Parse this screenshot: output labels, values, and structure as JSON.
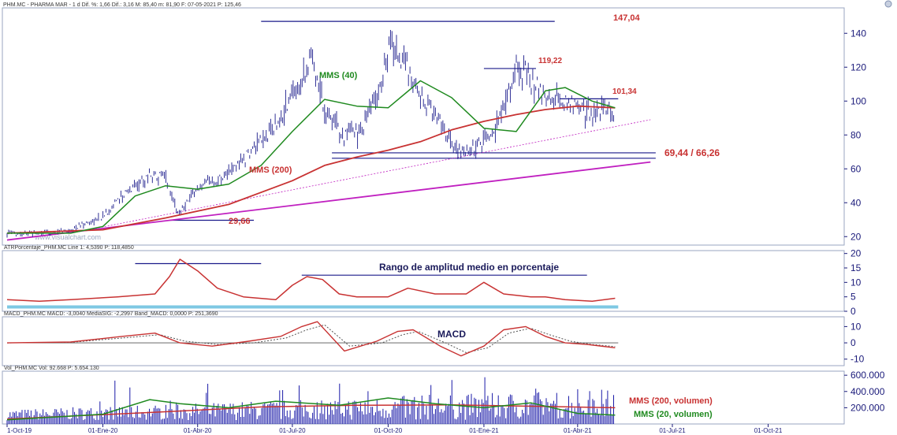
{
  "window": {
    "main_header": "PHM.MC - PHARMA MAR - 1 d  Dif. %: 1,66  Dif.: 3,16  M: 85,40  m: 81,90  F: 07-05-2021  P: 125,46",
    "atr_header": "ATRPorcentaje_PHM.MC  Line 1: 4,5390  P: 118,4850",
    "macd_header": "MACD_PHM.MC  MACD: -3,0040  MediaSIG: -2,2997  Band_MACD: 0,0000  P: 251,3690",
    "vol_header": "Vol_PHM.MC  Vol: 92.668  P: 5.654.130",
    "watermark": "www.visualchart.com"
  },
  "chart_data": [
    {
      "type": "line",
      "panel": "price",
      "ylim": [
        15,
        155
      ],
      "y_ticks": [
        "20",
        "40",
        "60",
        "80",
        "100",
        "120",
        "140"
      ],
      "x_ticks": [
        "1-Oct-19",
        "01-Ene-20",
        "01-Abr-20",
        "01-Jul-20",
        "01-Oct-20",
        "01-Ene-21",
        "01-Abr-21",
        "01-Jul-21",
        "01-Oct-21"
      ],
      "x_tick_dates": [
        "2019-10-01",
        "2020-01-01",
        "2020-04-01",
        "2020-07-01",
        "2020-10-01",
        "2021-01-01",
        "2021-04-01",
        "2021-07-01",
        "2021-10-01"
      ],
      "series": [
        {
          "name": "precio",
          "color": "#1a1a8a",
          "x": [
            "2019-10-01",
            "2019-11-01",
            "2019-12-01",
            "2020-01-01",
            "2020-01-20",
            "2020-02-15",
            "2020-03-01",
            "2020-03-13",
            "2020-04-01",
            "2020-05-01",
            "2020-06-01",
            "2020-06-20",
            "2020-07-08",
            "2020-07-20",
            "2020-08-01",
            "2020-08-20",
            "2020-09-05",
            "2020-09-25",
            "2020-10-01",
            "2020-10-20",
            "2020-11-01",
            "2020-11-20",
            "2020-12-01",
            "2020-12-10",
            "2020-12-20",
            "2021-01-01",
            "2021-01-15",
            "2021-02-01",
            "2021-02-15",
            "2021-03-01",
            "2021-03-15",
            "2021-04-01",
            "2021-04-15",
            "2021-04-30",
            "2021-05-07"
          ],
          "y": [
            22,
            22,
            24,
            32,
            44,
            57,
            55,
            34,
            48,
            58,
            75,
            90,
            112,
            127,
            95,
            80,
            82,
            110,
            135,
            120,
            100,
            90,
            75,
            70,
            71,
            75,
            88,
            120,
            113,
            102,
            100,
            97,
            93,
            96,
            84
          ]
        },
        {
          "name": "MMS (40)",
          "color": "#1f8a1f",
          "x": [
            "2019-10-01",
            "2019-12-01",
            "2020-01-01",
            "2020-02-01",
            "2020-03-01",
            "2020-04-01",
            "2020-05-01",
            "2020-06-01",
            "2020-07-01",
            "2020-08-01",
            "2020-09-01",
            "2020-10-01",
            "2020-11-01",
            "2020-12-01",
            "2021-01-01",
            "2021-02-01",
            "2021-03-01",
            "2021-03-20",
            "2021-04-15",
            "2021-05-07"
          ],
          "y": [
            22,
            22,
            26,
            44,
            50,
            48,
            51,
            62,
            82,
            101,
            97,
            96,
            112,
            102,
            84,
            82,
            106,
            108,
            100,
            96
          ]
        },
        {
          "name": "MMS (200)",
          "color": "#c83232",
          "x": [
            "2019-10-01",
            "2020-01-01",
            "2020-03-01",
            "2020-05-01",
            "2020-07-01",
            "2020-08-01",
            "2020-09-01",
            "2020-10-01",
            "2020-11-01",
            "2020-12-01",
            "2021-01-01",
            "2021-02-01",
            "2021-03-01",
            "2021-04-01",
            "2021-05-07"
          ],
          "y": [
            22,
            24,
            31,
            39,
            53,
            62,
            67,
            71,
            76,
            83,
            88,
            92,
            95,
            97,
            96
          ]
        }
      ],
      "annotations": {
        "high": "147,04",
        "level_119": "119,22",
        "level_101": "101,34",
        "support": "69,44 / 66,26",
        "low": "29,66",
        "mms40_label": "MMS (40)",
        "mms200_label": "MMS (200)"
      },
      "levels": [
        {
          "label": "147,04",
          "value": 147.04,
          "from": "2020-06-01",
          "to": "2021-03-10",
          "color": "#1a1a8a"
        },
        {
          "label": "119,22",
          "value": 119.22,
          "from": "2021-01-01",
          "to": "2021-02-20",
          "color": "#1a1a8a"
        },
        {
          "label": "101,34",
          "value": 101.34,
          "from": "2021-03-15",
          "to": "2021-05-10",
          "color": "#1a1a8a"
        },
        {
          "label": "69,44",
          "value": 69.44,
          "from": "2020-08-08",
          "to": "2021-06-15",
          "color": "#1a1a8a"
        },
        {
          "label": "66,26",
          "value": 66.26,
          "from": "2020-08-08",
          "to": "2021-06-15",
          "color": "#1a1a8a"
        },
        {
          "label": "29,66",
          "value": 29.66,
          "from": "2020-03-05",
          "to": "2020-05-25",
          "color": "#1a1a8a"
        }
      ],
      "trendlines": [
        {
          "name": "soporte",
          "color": "#c020c0",
          "from": [
            "2019-10-01",
            18
          ],
          "to": [
            "2021-06-10",
            64
          ]
        },
        {
          "name": "soporte_punteada",
          "color": "#c020c0",
          "dashed": true,
          "from": [
            "2019-12-01",
            22
          ],
          "to": [
            "2021-06-10",
            89
          ]
        }
      ]
    },
    {
      "type": "line",
      "panel": "atr",
      "ylim": [
        0,
        21
      ],
      "y_ticks": [
        "20",
        "15",
        "10",
        "5",
        "0"
      ],
      "title": "Rango de amplitud medio en porcentaje",
      "series": [
        {
          "name": "ATRPorcentaje",
          "color": "#c83232",
          "x": [
            "2019-10-01",
            "2019-11-01",
            "2019-12-01",
            "2020-01-15",
            "2020-02-20",
            "2020-03-05",
            "2020-03-15",
            "2020-04-01",
            "2020-04-20",
            "2020-05-15",
            "2020-06-15",
            "2020-07-01",
            "2020-07-15",
            "2020-07-30",
            "2020-08-15",
            "2020-09-01",
            "2020-10-01",
            "2020-10-20",
            "2020-11-15",
            "2020-12-15",
            "2021-01-01",
            "2021-01-20",
            "2021-02-15",
            "2021-03-01",
            "2021-03-20",
            "2021-04-15",
            "2021-05-07"
          ],
          "y": [
            4,
            3.5,
            4,
            5,
            6,
            12,
            18,
            14,
            8,
            5,
            4,
            9,
            12,
            11,
            6,
            5,
            5,
            8,
            6,
            6,
            10,
            6,
            5,
            5,
            4,
            3.5,
            4.5
          ]
        }
      ],
      "levels": [
        {
          "value": 16.5,
          "from": "2020-02-01",
          "to": "2020-06-01",
          "color": "#1a1a8a"
        },
        {
          "value": 12.5,
          "from": "2020-07-10",
          "to": "2021-04-10",
          "color": "#1a1a8a"
        },
        {
          "value": 1.5,
          "from": "2019-10-01",
          "to": "2021-05-10",
          "color": "#7ec8e3",
          "thick": true
        }
      ]
    },
    {
      "type": "line",
      "panel": "macd",
      "ylim": [
        -14,
        16
      ],
      "y_ticks": [
        "10",
        "0",
        "-10"
      ],
      "title": "MACD",
      "series": [
        {
          "name": "MACD",
          "color": "#c83232",
          "x": [
            "2019-10-01",
            "2019-12-01",
            "2020-01-20",
            "2020-02-20",
            "2020-03-15",
            "2020-04-15",
            "2020-05-20",
            "2020-06-20",
            "2020-07-10",
            "2020-07-25",
            "2020-08-20",
            "2020-09-20",
            "2020-10-10",
            "2020-10-25",
            "2020-11-20",
            "2020-12-10",
            "2021-01-01",
            "2021-01-20",
            "2021-02-10",
            "2021-03-01",
            "2021-03-20",
            "2021-04-10",
            "2021-05-07"
          ],
          "y": [
            0,
            0.5,
            4,
            6,
            0,
            -2,
            1,
            4,
            10,
            13,
            -5,
            1,
            7,
            8,
            -2,
            -8,
            -2,
            8,
            10,
            4,
            0,
            -1,
            -3
          ]
        },
        {
          "name": "MediaSIG",
          "color": "#555555",
          "dashed": true,
          "x": [
            "2019-10-01",
            "2019-12-01",
            "2020-01-20",
            "2020-02-25",
            "2020-03-20",
            "2020-04-20",
            "2020-05-25",
            "2020-06-25",
            "2020-07-15",
            "2020-08-01",
            "2020-08-25",
            "2020-09-25",
            "2020-10-15",
            "2020-10-30",
            "2020-11-25",
            "2020-12-15",
            "2021-01-05",
            "2021-01-25",
            "2021-02-15",
            "2021-03-05",
            "2021-03-25",
            "2021-04-15",
            "2021-05-07"
          ],
          "y": [
            0,
            0.3,
            3,
            5,
            1,
            -1,
            0,
            3,
            8,
            11,
            -2,
            0,
            5,
            7,
            0,
            -6,
            -3,
            6,
            9,
            5,
            1,
            -1,
            -2.3
          ]
        }
      ]
    },
    {
      "type": "bar",
      "panel": "volumen",
      "ylim": [
        0,
        650000
      ],
      "y_ticks": [
        "600.000",
        "400.000",
        "200.000"
      ],
      "volume_seed": 7,
      "volume_base": [
        120000,
        260000
      ],
      "series": [
        {
          "name": "MMS (200, volumen)",
          "color": "#c83232",
          "x": [
            "2019-10-01",
            "2020-03-01",
            "2020-06-01",
            "2020-09-01",
            "2020-12-01",
            "2021-03-01",
            "2021-05-07"
          ],
          "y": [
            60000,
            150000,
            210000,
            230000,
            235000,
            215000,
            200000
          ]
        },
        {
          "name": "MMS (20, volumen)",
          "color": "#1f8a1f",
          "x": [
            "2019-10-01",
            "2020-01-01",
            "2020-02-15",
            "2020-03-15",
            "2020-05-01",
            "2020-06-15",
            "2020-08-15",
            "2020-10-01",
            "2020-11-15",
            "2021-01-01",
            "2021-02-15",
            "2021-04-01",
            "2021-05-07"
          ],
          "y": [
            50000,
            120000,
            300000,
            250000,
            200000,
            280000,
            230000,
            320000,
            250000,
            200000,
            260000,
            130000,
            110000
          ]
        }
      ]
    }
  ]
}
